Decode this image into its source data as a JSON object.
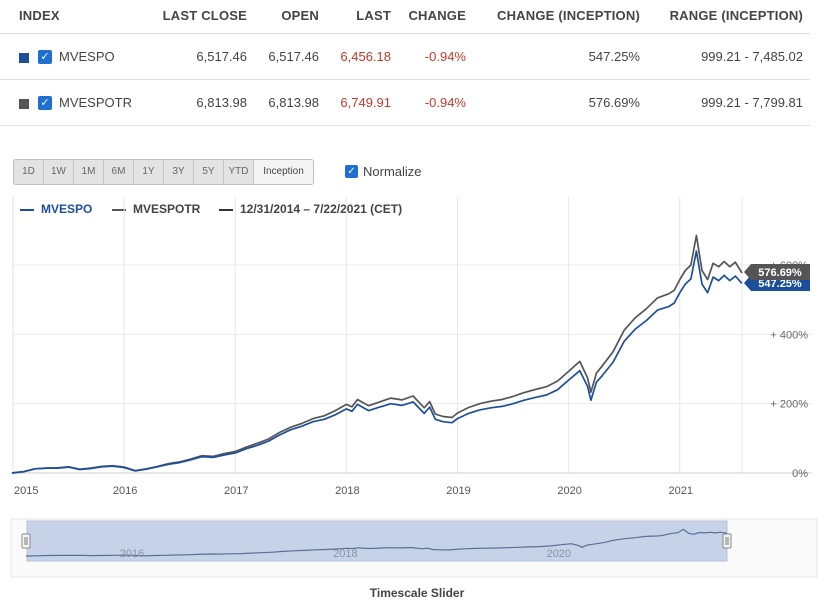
{
  "table": {
    "headers": {
      "index": "INDEX",
      "last_close": "LAST CLOSE",
      "open": "OPEN",
      "last": "LAST",
      "change": "CHANGE",
      "change_inception": "CHANGE (INCEPTION)",
      "range_inception": "RANGE (INCEPTION)"
    },
    "rows": [
      {
        "name": "MVESPO",
        "color": "#1b4f9c",
        "last_close": "6,517.46",
        "open": "6,517.46",
        "last": "6,456.18",
        "change": "-0.94%",
        "change_inception": "547.25%",
        "range_inception": "999.21 - 7,485.02"
      },
      {
        "name": "MVESPOTR",
        "color": "#555555",
        "last_close": "6,813.98",
        "open": "6,813.98",
        "last": "6,749.91",
        "change": "-0.94%",
        "change_inception": "576.69%",
        "range_inception": "999.21 - 7,799.81"
      }
    ]
  },
  "range_buttons": [
    "1D",
    "1W",
    "1M",
    "6M",
    "1Y",
    "3Y",
    "5Y",
    "YTD",
    "Inception"
  ],
  "active_range": "Inception",
  "normalize_label": "Normalize",
  "legend": {
    "series1": "MVESPO",
    "series2": "MVESPOTR",
    "period": "12/31/2014 – 7/22/2021 (CET)"
  },
  "footer": "Timescale Slider",
  "chart_data": {
    "type": "line",
    "x_ticks": [
      "2015",
      "2016",
      "2017",
      "2018",
      "2019",
      "2020",
      "2021"
    ],
    "y_ticks": [
      "0%",
      "+ 200%",
      "+ 400%",
      "+ 600%"
    ],
    "y_tick_values": [
      0,
      200,
      400,
      600
    ],
    "ylim": [
      0,
      720
    ],
    "grid": true,
    "x_range": [
      2015.0,
      2021.56
    ],
    "series": [
      {
        "name": "MVESPO",
        "color": "#1b4f9c",
        "end_label": "547.25%",
        "x": [
          2014.99,
          2015.1,
          2015.2,
          2015.3,
          2015.4,
          2015.5,
          2015.6,
          2015.7,
          2015.8,
          2015.9,
          2016.0,
          2016.1,
          2016.2,
          2016.3,
          2016.4,
          2016.5,
          2016.6,
          2016.7,
          2016.8,
          2016.9,
          2017.0,
          2017.1,
          2017.2,
          2017.3,
          2017.4,
          2017.5,
          2017.6,
          2017.7,
          2017.8,
          2017.9,
          2018.0,
          2018.05,
          2018.1,
          2018.2,
          2018.3,
          2018.4,
          2018.5,
          2018.6,
          2018.7,
          2018.75,
          2018.8,
          2018.87,
          2018.95,
          2019.0,
          2019.1,
          2019.2,
          2019.3,
          2019.4,
          2019.5,
          2019.6,
          2019.7,
          2019.8,
          2019.9,
          2020.0,
          2020.1,
          2020.17,
          2020.2,
          2020.25,
          2020.3,
          2020.4,
          2020.5,
          2020.6,
          2020.7,
          2020.8,
          2020.9,
          2020.95,
          2021.0,
          2021.05,
          2021.1,
          2021.15,
          2021.2,
          2021.25,
          2021.3,
          2021.35,
          2021.4,
          2021.45,
          2021.5,
          2021.56
        ],
        "y": [
          0,
          4,
          12,
          14,
          14,
          17,
          10,
          13,
          18,
          20,
          16,
          6,
          11,
          18,
          25,
          30,
          38,
          47,
          45,
          52,
          58,
          70,
          80,
          92,
          110,
          125,
          135,
          148,
          155,
          168,
          185,
          178,
          198,
          180,
          190,
          200,
          195,
          205,
          172,
          190,
          155,
          148,
          145,
          157,
          172,
          182,
          188,
          192,
          200,
          210,
          218,
          225,
          240,
          268,
          295,
          250,
          210,
          262,
          280,
          320,
          380,
          415,
          440,
          470,
          480,
          490,
          520,
          545,
          560,
          640,
          545,
          520,
          565,
          555,
          570,
          555,
          568,
          547
        ]
      },
      {
        "name": "MVESPOTR",
        "color": "#555555",
        "end_label": "576.69%",
        "x": [
          2014.99,
          2015.1,
          2015.2,
          2015.3,
          2015.4,
          2015.5,
          2015.6,
          2015.7,
          2015.8,
          2015.9,
          2016.0,
          2016.1,
          2016.2,
          2016.3,
          2016.4,
          2016.5,
          2016.6,
          2016.7,
          2016.8,
          2016.9,
          2017.0,
          2017.1,
          2017.2,
          2017.3,
          2017.4,
          2017.5,
          2017.6,
          2017.7,
          2017.8,
          2017.9,
          2018.0,
          2018.05,
          2018.1,
          2018.2,
          2018.3,
          2018.4,
          2018.5,
          2018.6,
          2018.7,
          2018.75,
          2018.8,
          2018.87,
          2018.95,
          2019.0,
          2019.1,
          2019.2,
          2019.3,
          2019.4,
          2019.5,
          2019.6,
          2019.7,
          2019.8,
          2019.9,
          2020.0,
          2020.1,
          2020.17,
          2020.2,
          2020.25,
          2020.3,
          2020.4,
          2020.5,
          2020.6,
          2020.7,
          2020.8,
          2020.9,
          2020.95,
          2021.0,
          2021.05,
          2021.1,
          2021.15,
          2021.2,
          2021.25,
          2021.3,
          2021.35,
          2021.4,
          2021.45,
          2021.5,
          2021.56
        ],
        "y": [
          0,
          4,
          12,
          14,
          15,
          18,
          11,
          14,
          19,
          21,
          17,
          7,
          12,
          19,
          27,
          32,
          40,
          50,
          48,
          56,
          62,
          75,
          86,
          98,
          117,
          132,
          143,
          157,
          165,
          180,
          198,
          191,
          212,
          194,
          205,
          216,
          211,
          222,
          188,
          206,
          170,
          163,
          160,
          173,
          189,
          200,
          207,
          212,
          221,
          232,
          241,
          249,
          265,
          293,
          322,
          275,
          233,
          288,
          308,
          350,
          412,
          448,
          474,
          505,
          517,
          527,
          558,
          584,
          600,
          685,
          584,
          558,
          605,
          595,
          610,
          595,
          608,
          577
        ]
      }
    ]
  }
}
